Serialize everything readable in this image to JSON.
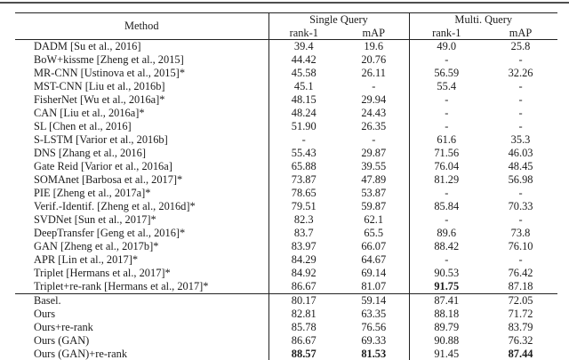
{
  "colors": {
    "rule": "#222222",
    "page_top_rule": "#4e4e4e"
  },
  "table": {
    "header": {
      "method": "Method",
      "groups": [
        {
          "label": "Single Query",
          "cols": [
            "rank-1",
            "mAP"
          ]
        },
        {
          "label": "Multi. Query",
          "cols": [
            "rank-1",
            "mAP"
          ]
        }
      ]
    },
    "sections": [
      {
        "rows": [
          {
            "method": "DADM [Su et al., 2016]",
            "values": [
              "39.4",
              "19.6",
              "49.0",
              "25.8"
            ],
            "bold": []
          },
          {
            "method": "BoW+kissme [Zheng et al., 2015]",
            "values": [
              "44.42",
              "20.76",
              "-",
              "-"
            ],
            "bold": []
          },
          {
            "method": "MR-CNN [Ustinova et al., 2015]*",
            "values": [
              "45.58",
              "26.11",
              "56.59",
              "32.26"
            ],
            "bold": []
          },
          {
            "method": "MST-CNN [Liu et al., 2016b]",
            "values": [
              "45.1",
              "-",
              "55.4",
              "-"
            ],
            "bold": []
          },
          {
            "method": "FisherNet [Wu et al., 2016a]*",
            "values": [
              "48.15",
              "29.94",
              "-",
              "-"
            ],
            "bold": []
          },
          {
            "method": "CAN [Liu et al., 2016a]*",
            "values": [
              "48.24",
              "24.43",
              "-",
              "-"
            ],
            "bold": []
          },
          {
            "method": "SL [Chen et al., 2016]",
            "values": [
              "51.90",
              "26.35",
              "-",
              "-"
            ],
            "bold": []
          },
          {
            "method": "S-LSTM [Varior et al., 2016b]",
            "values": [
              "-",
              "-",
              "61.6",
              "35.3"
            ],
            "bold": []
          },
          {
            "method": "DNS [Zhang et al., 2016]",
            "values": [
              "55.43",
              "29.87",
              "71.56",
              "46.03"
            ],
            "bold": []
          },
          {
            "method": "Gate Reid [Varior et al., 2016a]",
            "values": [
              "65.88",
              "39.55",
              "76.04",
              "48.45"
            ],
            "bold": []
          },
          {
            "method": "SOMAnet [Barbosa et al., 2017]*",
            "values": [
              "73.87",
              "47.89",
              "81.29",
              "56.98"
            ],
            "bold": []
          },
          {
            "method": "PIE [Zheng et al., 2017a]*",
            "values": [
              "78.65",
              "53.87",
              "-",
              "-"
            ],
            "bold": []
          },
          {
            "method": "Verif.-Identif. [Zheng et al., 2016d]*",
            "values": [
              "79.51",
              "59.87",
              "85.84",
              "70.33"
            ],
            "bold": []
          },
          {
            "method": "SVDNet [Sun et al., 2017]*",
            "values": [
              "82.3",
              "62.1",
              "-",
              "-"
            ],
            "bold": []
          },
          {
            "method": "DeepTransfer [Geng et al., 2016]*",
            "values": [
              "83.7",
              "65.5",
              "89.6",
              "73.8"
            ],
            "bold": []
          },
          {
            "method": "GAN [Zheng et al., 2017b]*",
            "values": [
              "83.97",
              "66.07",
              "88.42",
              "76.10"
            ],
            "bold": []
          },
          {
            "method": "APR [Lin et al., 2017]*",
            "values": [
              "84.29",
              "64.67",
              "-",
              "-"
            ],
            "bold": []
          },
          {
            "method": "Triplet [Hermans et al., 2017]*",
            "values": [
              "84.92",
              "69.14",
              "90.53",
              "76.42"
            ],
            "bold": []
          },
          {
            "method": "Triplet+re-rank [Hermans et al., 2017]*",
            "values": [
              "86.67",
              "81.07",
              "91.75",
              "87.18"
            ],
            "bold": [
              2
            ]
          }
        ]
      },
      {
        "rows": [
          {
            "method": "Basel.",
            "values": [
              "80.17",
              "59.14",
              "87.41",
              "72.05"
            ],
            "bold": []
          },
          {
            "method": "Ours",
            "values": [
              "82.81",
              "63.35",
              "88.18",
              "71.72"
            ],
            "bold": []
          },
          {
            "method": "Ours+re-rank",
            "values": [
              "85.78",
              "76.56",
              "89.79",
              "83.79"
            ],
            "bold": []
          },
          {
            "method": "Ours (GAN)",
            "values": [
              "86.67",
              "69.33",
              "90.88",
              "76.32"
            ],
            "bold": []
          },
          {
            "method": "Ours (GAN)+re-rank",
            "values": [
              "88.57",
              "81.53",
              "91.45",
              "87.44"
            ],
            "bold": [
              0,
              1,
              3
            ]
          }
        ]
      }
    ]
  }
}
